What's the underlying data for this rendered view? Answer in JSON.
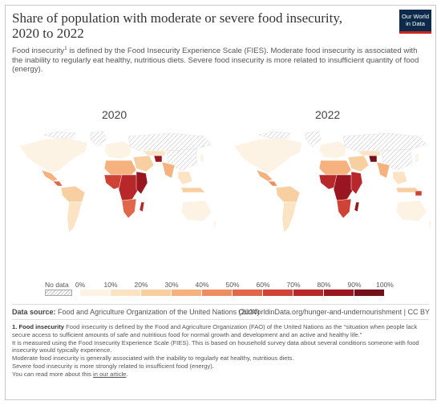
{
  "header": {
    "title": "Share of population with moderate or severe food insecurity, 2020 to 2022",
    "subtitle_before_sup": "Food insecurity",
    "subtitle_sup": "1",
    "subtitle_after_sup": " is defined by the Food Insecurity Experience Scale (FIES). Moderate food insecurity is associated with the inability to regularly eat healthy, nutritious diets. Severe food insecurity is more related to insufficient quantity of food (energy).",
    "logo_line1": "Our World",
    "logo_line2": "in Data"
  },
  "maps": [
    {
      "year": "2020"
    },
    {
      "year": "2022"
    }
  ],
  "legend": {
    "no_data_label": "No data",
    "ticks": [
      "0%",
      "10%",
      "20%",
      "30%",
      "40%",
      "50%",
      "60%",
      "70%",
      "80%",
      "90%",
      "100%"
    ],
    "colors": [
      "#fdf3e4",
      "#fbe3c3",
      "#f8cfa0",
      "#f5b27f",
      "#ee8d61",
      "#e2674a",
      "#cf4336",
      "#b8272a",
      "#991620",
      "#74101a"
    ]
  },
  "footer": {
    "source_label": "Data source:",
    "source_text": " Food and Agriculture Organization of the United Nations (2024)",
    "url_text": "OurWorldinData.org/hunger-and-undernourishment | CC BY"
  },
  "notes": {
    "n1_label": "1. Food insecurity",
    "n1_text": " Food insecurity is defined by the Food and Agriculture Organization (FAO) of the United Nations as the “situation when people lack secure access to sufficient amounts of safe and nutritious food for normal growth and development and an active and healthy life.”",
    "line2": "It is measured using the Food Insecurity Experience Scale (FIES). This is based on household survey data about several conditions someone with food insecurity would typically experience.",
    "line3": "Moderate food insecurity is generally associated with the inability to regularly eat healthy, nutritious diets.",
    "line4": "Severe food insecurity is more strongly related to insufficient food (energy).",
    "line5_before": "You can read more about this ",
    "line5_link": "in our article",
    "line5_after": "."
  }
}
